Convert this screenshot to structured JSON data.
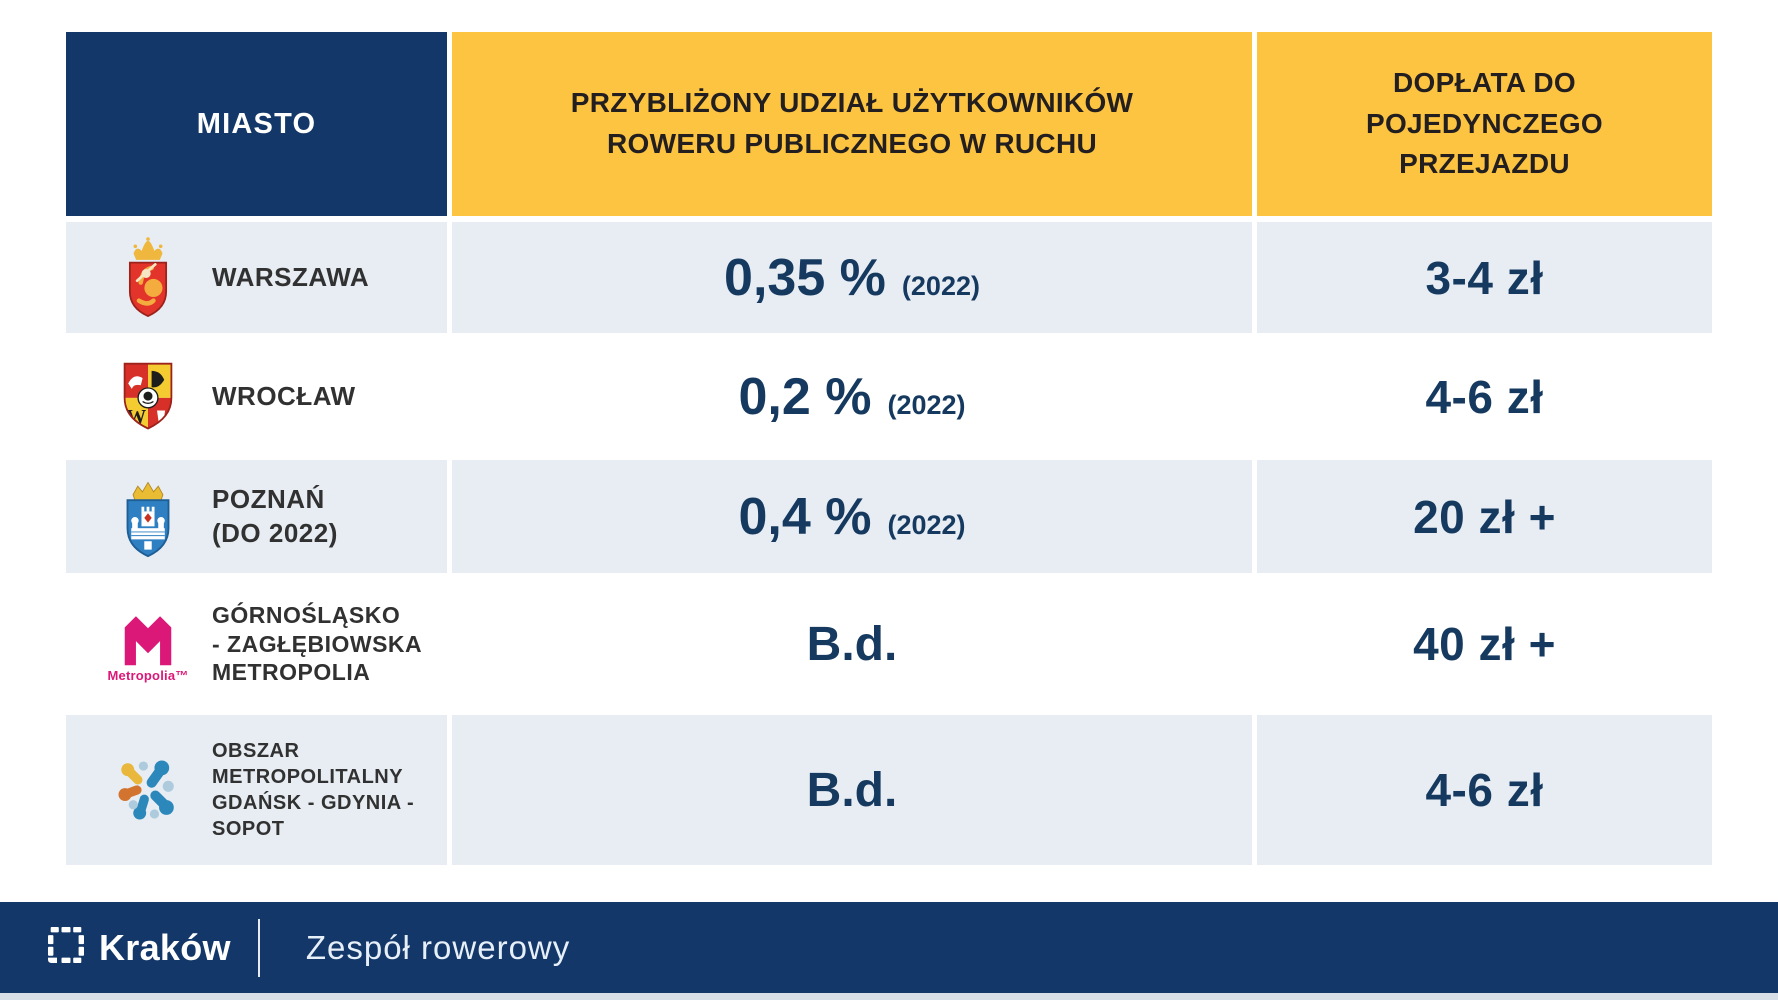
{
  "chart_data": {
    "type": "table",
    "title": "",
    "columns": [
      "MIASTO",
      "PRZYBLIŻONY UDZIAŁ UŻYTKOWNIKÓW ROWERU PUBLICZNEGO W RUCHU",
      "DOPŁATA DO POJEDYNCZEGO PRZEJAZDU"
    ],
    "rows": [
      [
        "WARSZAWA",
        "0,35 % (2022)",
        "3-4 zł"
      ],
      [
        "WROCŁAW",
        "0,2 % (2022)",
        "4-6 zł"
      ],
      [
        "POZNAŃ (DO 2022)",
        "0,4 % (2022)",
        "20 zł +"
      ],
      [
        "GÓRNOŚLĄSKO - ZAGŁĘBIOWSKA METROPOLIA",
        "B.d.",
        "40 zł +"
      ],
      [
        "OBSZAR METROPOLITALNY GDAŃSK - GDYNIA - SOPOT",
        "B.d.",
        "4-6 zł"
      ]
    ]
  },
  "table": {
    "columns": [
      {
        "label": "MIASTO"
      },
      {
        "label": "PRZYBLIŻONY UDZIAŁ UŻYTKOWNIKÓW ROWERU PUBLICZNEGO W RUCHU"
      },
      {
        "label": "DOPŁATA DO POJEDYNCZEGO PRZEJAZDU"
      }
    ],
    "rows": [
      {
        "logo": "warszawa-crest",
        "city_lines": [
          "WARSZAWA"
        ],
        "share": "0,35 %",
        "share_note": "(2022)",
        "fee": "3-4 zł"
      },
      {
        "logo": "wroclaw-crest",
        "city_lines": [
          "WROCŁAW"
        ],
        "share": "0,2 %",
        "share_note": "(2022)",
        "fee": "4-6 zł"
      },
      {
        "logo": "poznan-crest",
        "city_lines": [
          "POZNAŃ",
          "(DO 2022)"
        ],
        "share": "0,4 %",
        "share_note": "(2022)",
        "fee": "20 zł +"
      },
      {
        "logo": "gzm-logo",
        "logo_caption": "Metropolia™",
        "city_lines": [
          "GÓRNOŚLĄSKO",
          "- ZAGŁĘBIOWSKA",
          "METROPOLIA"
        ],
        "share": "B.d.",
        "share_note": "",
        "fee": "40 zł +"
      },
      {
        "logo": "omggs-logo",
        "city_lines": [
          "OBSZAR METROPOLITALNY",
          "GDAŃSK - GDYNIA - SOPOT"
        ],
        "share": "B.d.",
        "share_note": "",
        "fee": "4-6 zł"
      }
    ]
  },
  "footer": {
    "brand": "Kraków",
    "team": "Zespół rowerowy"
  },
  "colors": {
    "navy": "#123768",
    "yellow": "#FCC440",
    "rowGray": "#E7EDF3",
    "valueNavy": "#16395F",
    "headerTextDark": "#231F20",
    "labelDark": "#313131",
    "pink": "#DB1878",
    "footerText": "#FFFFFF",
    "teamText": "#E7EFF8",
    "bottomStrip": "#D9DFE6"
  }
}
